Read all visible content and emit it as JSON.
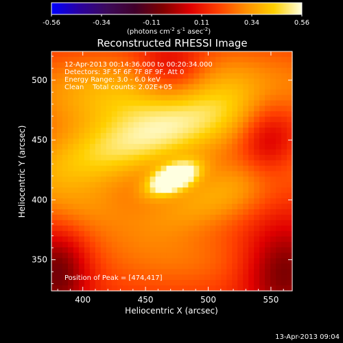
{
  "chart_data": {
    "type": "heatmap",
    "title": "Reconstructed RHESSI Image",
    "xlabel": "Heliocentric X (arcsec)",
    "ylabel": "Heliocentric Y (arcsec)",
    "xlim": [
      375,
      567
    ],
    "ylim": [
      324,
      524
    ],
    "x_ticks": [
      400,
      450,
      500,
      550
    ],
    "y_ticks": [
      350,
      400,
      450,
      500
    ],
    "colorbar": {
      "min": -0.56,
      "max": 0.56,
      "ticks": [
        "-0.56",
        "-0.34",
        "-0.11",
        "0.11",
        "0.34",
        "0.56"
      ],
      "units_prefix": "(photons cm",
      "units_sup1": "-2",
      "units_mid": " s",
      "units_sup2": "-1",
      "units_mid2": " asec",
      "units_sup3": "-2",
      "units_suffix": ")",
      "colormap": [
        "#0000ff",
        "#2a00a0",
        "#3c0a5a",
        "#40002a",
        "#800000",
        "#e00000",
        "#ff4000",
        "#ff9000",
        "#ffd000",
        "#ffffe0"
      ]
    },
    "annotations": [
      "12-Apr-2013 00:14:36.000 to 00:20:34.000",
      "Detectors: 3F 5F 6F 7F 8F 9F, Att 0",
      "Energy Range: 3.0 - 6.0 keV",
      "Clean    Total counts: 2.02E+05"
    ],
    "peak_label": "Position of Peak = [474,417]",
    "peak": [
      474,
      417
    ],
    "sources": [
      {
        "x": 472,
        "y": 418,
        "sx": 14,
        "sy": 7,
        "angle_deg": 25,
        "amp": 0.58
      },
      {
        "x": 450,
        "y": 450,
        "sx": 80,
        "sy": 20,
        "angle_deg": 18,
        "amp": 0.32
      },
      {
        "x": 425,
        "y": 488,
        "sx": 55,
        "sy": 22,
        "angle_deg": 0,
        "amp": 0.22
      },
      {
        "x": 510,
        "y": 405,
        "sx": 55,
        "sy": 18,
        "angle_deg": 22,
        "amp": 0.2
      },
      {
        "x": 520,
        "y": 505,
        "sx": 45,
        "sy": 20,
        "angle_deg": 0,
        "amp": 0.1
      },
      {
        "x": 400,
        "y": 392,
        "sx": 30,
        "sy": 18,
        "angle_deg": 0,
        "amp": 0.12
      },
      {
        "x": 475,
        "y": 350,
        "sx": 45,
        "sy": 18,
        "angle_deg": 0,
        "amp": 0.1
      }
    ],
    "baseline": 0.16,
    "depressions": [
      {
        "x": 380,
        "y": 340,
        "sx": 18,
        "sy": 25,
        "amp": -0.26
      },
      {
        "x": 560,
        "y": 340,
        "sx": 22,
        "sy": 28,
        "amp": -0.24
      },
      {
        "x": 470,
        "y": 508,
        "sx": 20,
        "sy": 18,
        "amp": -0.2
      },
      {
        "x": 548,
        "y": 450,
        "sx": 16,
        "sy": 28,
        "amp": -0.18
      }
    ]
  },
  "footer": {
    "timestamp": "13-Apr-2013 09:04"
  }
}
